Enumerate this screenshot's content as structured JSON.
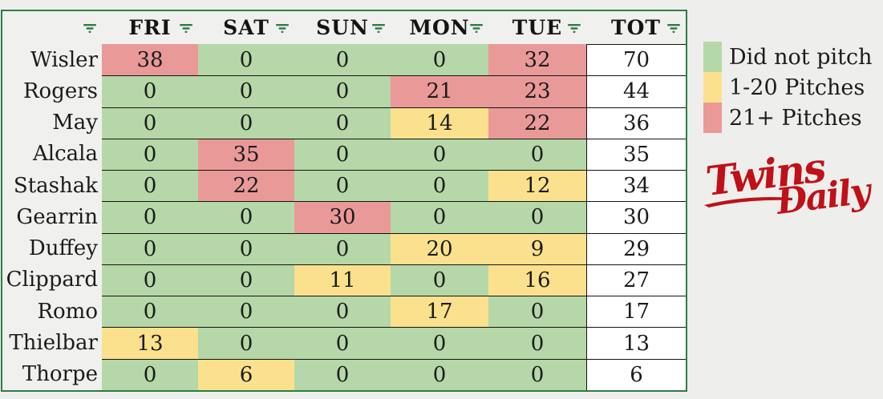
{
  "table": {
    "corner_label": "",
    "columns": [
      "FRI",
      "SAT",
      "SUN",
      "MON",
      "TUE",
      "TOT"
    ],
    "rows": [
      {
        "name": "Wisler",
        "values": [
          38,
          0,
          0,
          0,
          32
        ],
        "total": 70
      },
      {
        "name": "Rogers",
        "values": [
          0,
          0,
          0,
          21,
          23
        ],
        "total": 44
      },
      {
        "name": "May",
        "values": [
          0,
          0,
          0,
          14,
          22
        ],
        "total": 36
      },
      {
        "name": "Alcala",
        "values": [
          0,
          35,
          0,
          0,
          0
        ],
        "total": 35
      },
      {
        "name": "Stashak",
        "values": [
          0,
          22,
          0,
          0,
          12
        ],
        "total": 34
      },
      {
        "name": "Gearrin",
        "values": [
          0,
          0,
          30,
          0,
          0
        ],
        "total": 30
      },
      {
        "name": "Duffey",
        "values": [
          0,
          0,
          0,
          20,
          9
        ],
        "total": 29
      },
      {
        "name": "Clippard",
        "values": [
          0,
          0,
          11,
          0,
          16
        ],
        "total": 27
      },
      {
        "name": "Romo",
        "values": [
          0,
          0,
          0,
          17,
          0
        ],
        "total": 17
      },
      {
        "name": "Thielbar",
        "values": [
          13,
          0,
          0,
          0,
          0
        ],
        "total": 13
      },
      {
        "name": "Thorpe",
        "values": [
          0,
          6,
          0,
          0,
          0
        ],
        "total": 6
      }
    ]
  },
  "legend": {
    "items": [
      {
        "label": "Did not pitch",
        "color": "#b6d7a8"
      },
      {
        "label": "1-20 Pitches",
        "color": "#fbe18d"
      },
      {
        "label": "21+ Pitches",
        "color": "#ea9999"
      }
    ]
  },
  "logo": {
    "word1": "Twins",
    "word2": "Daily",
    "color": "#bf1117"
  },
  "icons": {
    "header_filter": "filter-icon"
  },
  "colors": {
    "did_not_pitch": "#b6d7a8",
    "pitches_1_20": "#fbe18d",
    "pitches_21_plus": "#ea9999",
    "total_cell": "#ffffff",
    "table_border_green": "#2e7d45",
    "grid_line_black": "#141414",
    "page_background": "#eeeeec",
    "header_background": "#f0f0ee"
  }
}
